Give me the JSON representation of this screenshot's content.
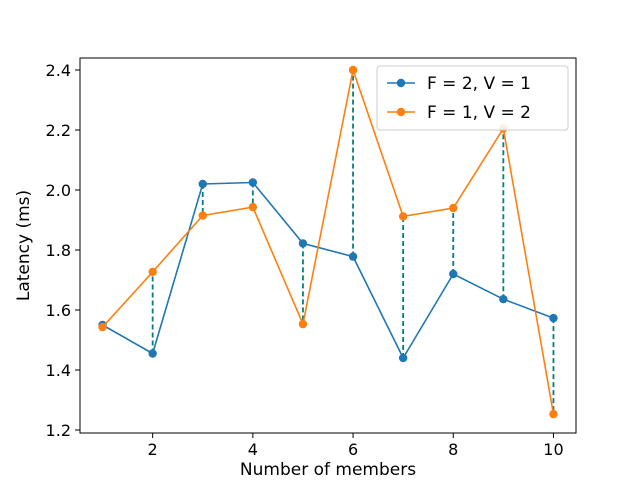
{
  "chart_data": {
    "type": "line",
    "title": "",
    "xlabel": "Number of members",
    "ylabel": "Latency (ms)",
    "xlim": [
      0.55,
      10.45
    ],
    "ylim": [
      1.19,
      2.44
    ],
    "x": [
      1,
      2,
      3,
      4,
      5,
      6,
      7,
      8,
      9,
      10
    ],
    "x_ticks": [
      "2",
      "4",
      "6",
      "8",
      "10"
    ],
    "y_ticks": [
      "1.2",
      "1.4",
      "1.6",
      "1.8",
      "2.0",
      "2.2",
      "2.4"
    ],
    "grid": false,
    "legend_position": "top-right",
    "series": [
      {
        "name": "F = 2, V = 1",
        "color": "#1f77b4",
        "marker": "circle",
        "values": [
          1.55,
          1.455,
          2.02,
          2.025,
          1.822,
          1.778,
          1.44,
          1.72,
          1.636,
          1.573
        ]
      },
      {
        "name": "F = 1, V = 2",
        "color": "#ff7f0e",
        "marker": "circle",
        "values": [
          1.543,
          1.727,
          1.915,
          1.943,
          1.553,
          2.4,
          1.912,
          1.94,
          2.205,
          1.253
        ]
      }
    ],
    "difference_lines": {
      "color": "#008080",
      "style": "dashed"
    }
  }
}
